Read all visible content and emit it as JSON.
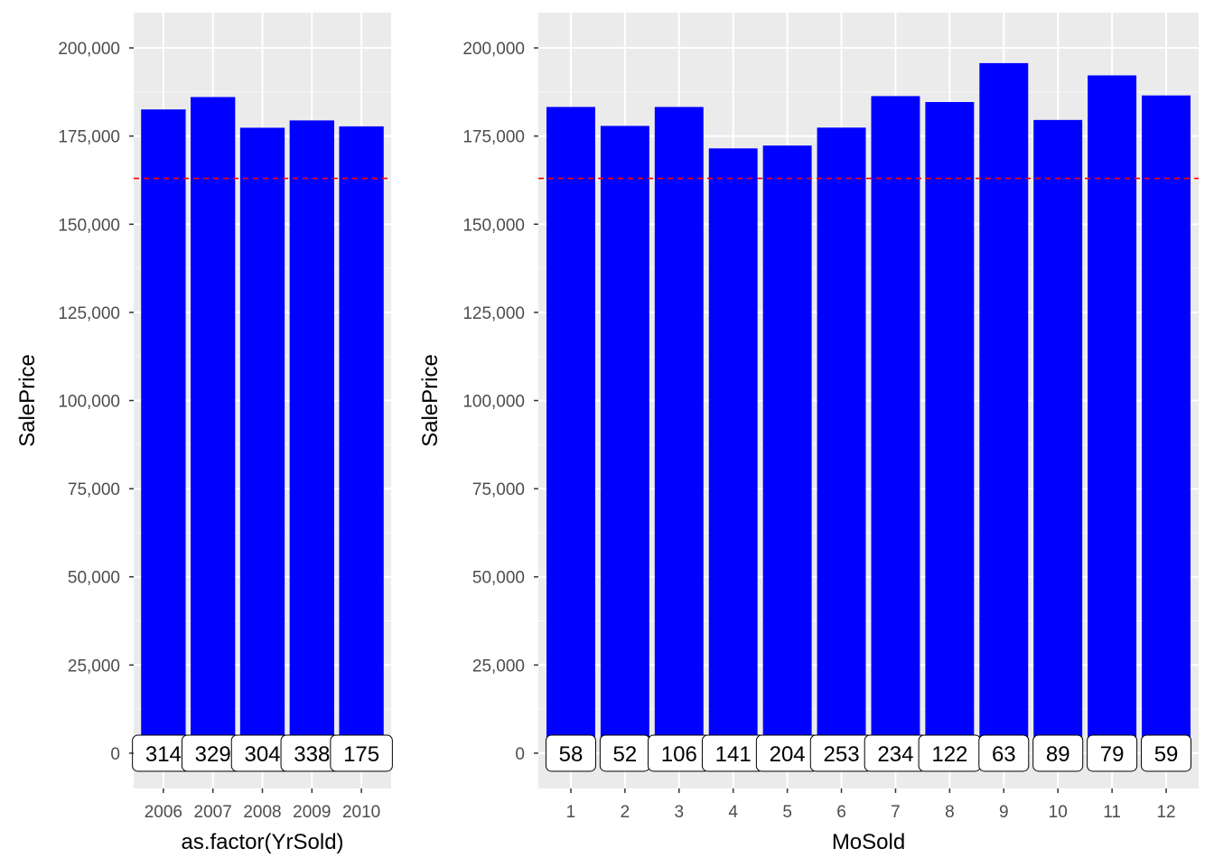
{
  "colors": {
    "bar": "#0000ff",
    "panel": "#ebebeb",
    "grid_major": "#ffffff",
    "reference_line": "#ff0000",
    "label_fill": "#ffffff",
    "label_border": "#000000"
  },
  "chart_data": [
    {
      "type": "bar",
      "xlabel": "as.factor(YrSold)",
      "ylabel": "SalePrice",
      "categories": [
        "2006",
        "2007",
        "2008",
        "2009",
        "2010"
      ],
      "values": [
        182550,
        186064,
        177361,
        179432,
        177750
      ],
      "counts": [
        "314",
        "329",
        "304",
        "338",
        "175"
      ],
      "reference_line": 163000,
      "ylim": [
        -10000,
        210000
      ],
      "yticks": [
        0,
        25000,
        50000,
        75000,
        100000,
        125000,
        150000,
        175000,
        200000
      ],
      "ytick_labels": [
        "0",
        "25,000",
        "50,000",
        "75,000",
        "100,000",
        "125,000",
        "150,000",
        "175,000",
        "200,000"
      ],
      "grid": true,
      "legend": "none"
    },
    {
      "type": "bar",
      "xlabel": "MoSold",
      "ylabel": "SalePrice",
      "categories": [
        "1",
        "2",
        "3",
        "4",
        "5",
        "6",
        "7",
        "8",
        "9",
        "10",
        "11",
        "12"
      ],
      "values": [
        183256,
        177882,
        183253,
        171503,
        172307,
        177395,
        186331,
        184652,
        195683,
        179564,
        192210,
        186518
      ],
      "counts": [
        "58",
        "52",
        "106",
        "141",
        "204",
        "253",
        "234",
        "122",
        "63",
        "89",
        "79",
        "59"
      ],
      "reference_line": 163000,
      "ylim": [
        -10000,
        210000
      ],
      "yticks": [
        0,
        25000,
        50000,
        75000,
        100000,
        125000,
        150000,
        175000,
        200000
      ],
      "ytick_labels": [
        "0",
        "25,000",
        "50,000",
        "75,000",
        "100,000",
        "125,000",
        "150,000",
        "175,000",
        "200,000"
      ],
      "grid": true,
      "legend": "none"
    }
  ]
}
